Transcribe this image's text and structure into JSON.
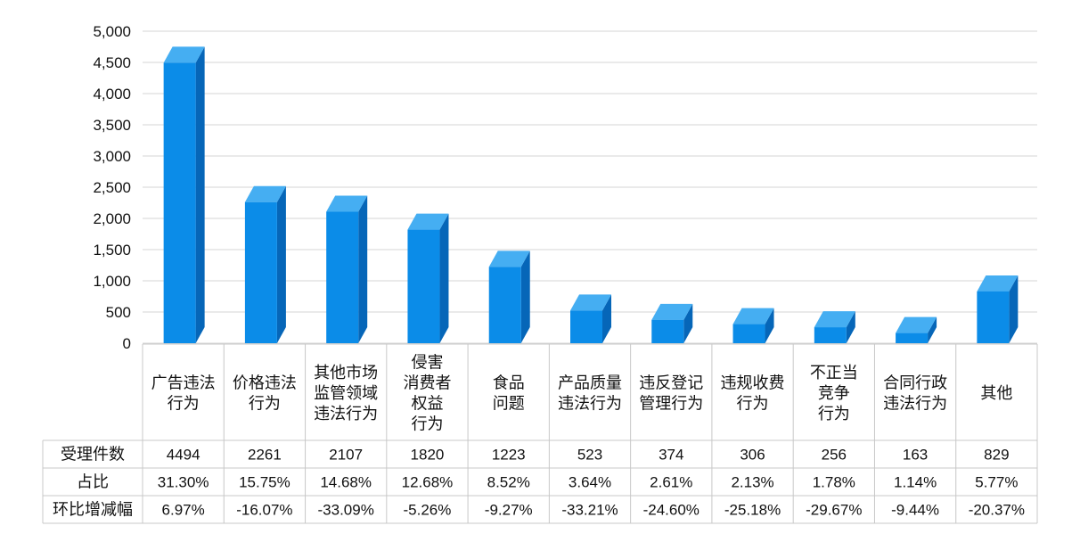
{
  "chart_data": {
    "type": "bar",
    "ylim": [
      0,
      5000
    ],
    "yticks": [
      "0",
      "500",
      "1,000",
      "1,500",
      "2,000",
      "2,500",
      "3,000",
      "3,500",
      "4,000",
      "4,500",
      "5,000"
    ],
    "grid": true,
    "categories": [
      [
        "广告违法",
        "行为"
      ],
      [
        "价格违法",
        "行为"
      ],
      [
        "其他市场",
        "监管领域",
        "违法行为"
      ],
      [
        "侵害",
        "消费者",
        "权益",
        "行为"
      ],
      [
        "食品",
        "问题"
      ],
      [
        "产品质量",
        "违法行为"
      ],
      [
        "违反登记",
        "管理行为"
      ],
      [
        "违规收费",
        "行为"
      ],
      [
        "不正当",
        "竞争",
        "行为"
      ],
      [
        "合同行政",
        "违法行为"
      ],
      [
        "其他"
      ]
    ],
    "values": [
      4494,
      2261,
      2107,
      1820,
      1223,
      523,
      374,
      306,
      256,
      163,
      829
    ],
    "bar_color": "#0b8ce8",
    "bar_side_color": "#0666b8",
    "bar_top_color": "#45aef2",
    "table": {
      "rows": [
        {
          "label": "受理件数",
          "cells": [
            "4494",
            "2261",
            "2107",
            "1820",
            "1223",
            "523",
            "374",
            "306",
            "256",
            "163",
            "829"
          ]
        },
        {
          "label": "占比",
          "cells": [
            "31.30%",
            "15.75%",
            "14.68%",
            "12.68%",
            "8.52%",
            "3.64%",
            "2.61%",
            "2.13%",
            "1.78%",
            "1.14%",
            "5.77%"
          ]
        },
        {
          "label": "环比增减幅",
          "cells": [
            "6.97%",
            "-16.07%",
            "-33.09%",
            "-5.26%",
            "-9.27%",
            "-33.21%",
            "-24.60%",
            "-25.18%",
            "-29.67%",
            "-9.44%",
            "-20.37%"
          ]
        }
      ]
    }
  }
}
